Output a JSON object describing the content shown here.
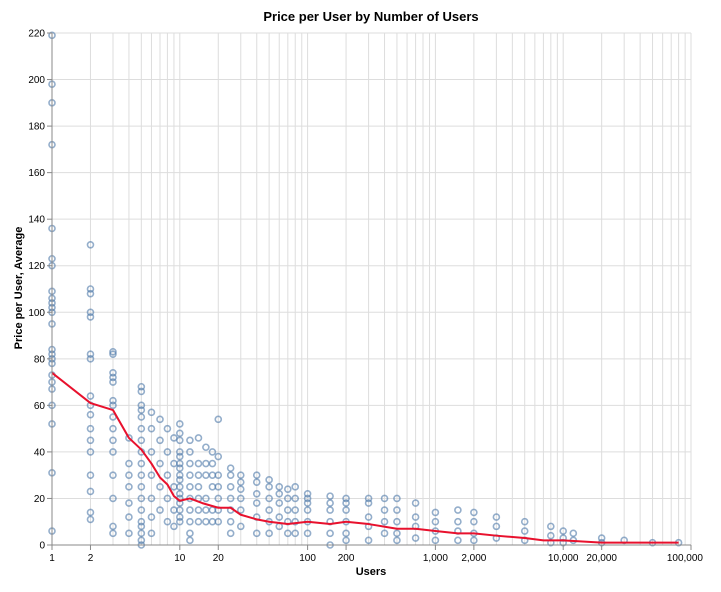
{
  "chart_data": {
    "type": "scatter",
    "title": "Price per User by Number of Users",
    "xlabel": "Users",
    "ylabel": "Price per User, Average",
    "x_scale": "log",
    "xlim": [
      1,
      100000
    ],
    "ylim": [
      0,
      220
    ],
    "grid": true,
    "x_ticks": [
      {
        "value": 1,
        "label": "1"
      },
      {
        "value": 2,
        "label": "2"
      },
      {
        "value": 10,
        "label": "10"
      },
      {
        "value": 20,
        "label": "20"
      },
      {
        "value": 100,
        "label": "100"
      },
      {
        "value": 200,
        "label": "200"
      },
      {
        "value": 1000,
        "label": "1,000"
      },
      {
        "value": 2000,
        "label": "2,000"
      },
      {
        "value": 10000,
        "label": "10,000"
      },
      {
        "value": 20000,
        "label": "20,000"
      },
      {
        "value": 100000,
        "label": "100,000"
      }
    ],
    "y_ticks": [
      0,
      20,
      40,
      60,
      80,
      100,
      120,
      140,
      160,
      180,
      200,
      220
    ],
    "colors": {
      "points": "#4c78a8",
      "trend": "#e8112d",
      "grid": "#dddddd",
      "axis": "#888888"
    },
    "series": [
      {
        "name": "price per user",
        "kind": "points",
        "x": [
          1,
          1,
          1,
          1,
          1,
          1,
          1,
          1,
          1,
          1,
          1,
          1,
          1,
          1,
          1,
          1,
          1,
          1,
          1,
          1,
          1,
          1,
          1,
          1,
          2,
          2,
          2,
          2,
          2,
          2,
          2,
          2,
          2,
          2,
          2,
          2,
          2,
          2,
          2,
          2,
          2,
          3,
          3,
          3,
          3,
          3,
          3,
          3,
          3,
          3,
          3,
          3,
          3,
          3,
          3,
          3,
          4,
          4,
          4,
          4,
          4,
          4,
          4,
          5,
          5,
          5,
          5,
          5,
          5,
          5,
          5,
          5,
          5,
          5,
          5,
          5,
          5,
          5,
          5,
          5,
          5,
          6,
          6,
          6,
          6,
          6,
          6,
          6,
          7,
          7,
          7,
          7,
          7,
          8,
          8,
          8,
          8,
          8,
          9,
          9,
          9,
          9,
          9,
          10,
          10,
          10,
          10,
          10,
          10,
          10,
          10,
          10,
          10,
          10,
          10,
          10,
          10,
          10,
          10,
          12,
          12,
          12,
          12,
          12,
          12,
          12,
          12,
          12,
          12,
          14,
          14,
          14,
          14,
          14,
          14,
          14,
          16,
          16,
          16,
          16,
          16,
          16,
          18,
          18,
          18,
          18,
          18,
          18,
          20,
          20,
          20,
          20,
          20,
          20,
          20,
          25,
          25,
          25,
          25,
          25,
          25,
          25,
          30,
          30,
          30,
          30,
          30,
          30,
          40,
          40,
          40,
          40,
          40,
          40,
          50,
          50,
          50,
          50,
          50,
          50,
          60,
          60,
          60,
          60,
          60,
          70,
          70,
          70,
          70,
          70,
          80,
          80,
          80,
          80,
          80,
          100,
          100,
          100,
          100,
          100,
          100,
          150,
          150,
          150,
          150,
          150,
          150,
          200,
          200,
          200,
          200,
          200,
          200,
          300,
          300,
          300,
          300,
          300,
          400,
          400,
          400,
          400,
          500,
          500,
          500,
          500,
          500,
          700,
          700,
          700,
          700,
          1000,
          1000,
          1000,
          1000,
          1500,
          1500,
          1500,
          1500,
          2000,
          2000,
          2000,
          2000,
          3000,
          3000,
          3000,
          5000,
          5000,
          5000,
          8000,
          8000,
          8000,
          10000,
          10000,
          10000,
          12000,
          12000,
          20000,
          20000,
          30000,
          50000,
          80000
        ],
        "y": [
          219,
          198,
          190,
          172,
          136,
          123,
          120,
          109,
          106,
          104,
          102,
          100,
          95,
          84,
          82,
          80,
          78,
          73,
          70,
          67,
          60,
          52,
          31,
          6,
          129,
          110,
          108,
          100,
          98,
          82,
          80,
          64,
          60,
          56,
          50,
          45,
          40,
          30,
          23,
          14,
          11,
          83,
          82,
          74,
          72,
          70,
          62,
          60,
          55,
          50,
          45,
          40,
          30,
          20,
          8,
          5,
          46,
          35,
          30,
          25,
          18,
          12,
          5,
          68,
          66,
          60,
          58,
          55,
          50,
          45,
          40,
          35,
          30,
          25,
          20,
          15,
          10,
          8,
          5,
          2,
          0,
          57,
          50,
          40,
          30,
          20,
          12,
          5,
          54,
          45,
          35,
          25,
          15,
          50,
          40,
          30,
          20,
          10,
          46,
          35,
          25,
          15,
          8,
          52,
          48,
          45,
          40,
          38,
          35,
          33,
          30,
          28,
          25,
          22,
          20,
          18,
          15,
          12,
          10,
          45,
          40,
          35,
          30,
          25,
          20,
          15,
          10,
          5,
          2,
          46,
          35,
          30,
          25,
          20,
          15,
          10,
          42,
          35,
          30,
          20,
          15,
          10,
          40,
          35,
          30,
          25,
          15,
          10,
          54,
          38,
          30,
          25,
          20,
          15,
          10,
          33,
          30,
          25,
          20,
          15,
          10,
          5,
          30,
          27,
          24,
          20,
          15,
          8,
          30,
          27,
          22,
          18,
          12,
          5,
          28,
          25,
          20,
          15,
          10,
          5,
          25,
          22,
          18,
          12,
          8,
          24,
          20,
          15,
          10,
          5,
          25,
          20,
          15,
          10,
          5,
          22,
          20,
          18,
          15,
          10,
          5,
          21,
          18,
          15,
          10,
          5,
          0,
          20,
          18,
          15,
          10,
          5,
          2,
          20,
          18,
          12,
          8,
          2,
          20,
          15,
          10,
          5,
          20,
          15,
          10,
          5,
          2,
          18,
          12,
          8,
          3,
          14,
          10,
          6,
          2,
          15,
          10,
          6,
          2,
          14,
          10,
          5,
          2,
          12,
          8,
          3,
          10,
          6,
          2,
          8,
          4,
          1,
          6,
          3,
          1,
          5,
          2,
          3,
          1,
          2,
          1,
          1
        ]
      },
      {
        "name": "trend",
        "kind": "line",
        "x": [
          1,
          2,
          3,
          4,
          5,
          6,
          7,
          8,
          9,
          10,
          12,
          15,
          20,
          25,
          30,
          40,
          50,
          70,
          100,
          150,
          200,
          300,
          500,
          700,
          1000,
          1500,
          2000,
          3000,
          5000,
          7000,
          10000,
          20000,
          50000,
          80000
        ],
        "y": [
          74,
          61,
          58,
          46,
          41,
          35,
          29,
          26,
          21,
          19,
          20,
          18,
          16,
          16,
          13,
          11,
          10,
          9,
          10,
          9,
          10,
          9,
          7,
          7,
          6,
          5,
          5,
          4,
          3,
          2,
          2,
          1,
          1,
          1
        ]
      }
    ]
  }
}
